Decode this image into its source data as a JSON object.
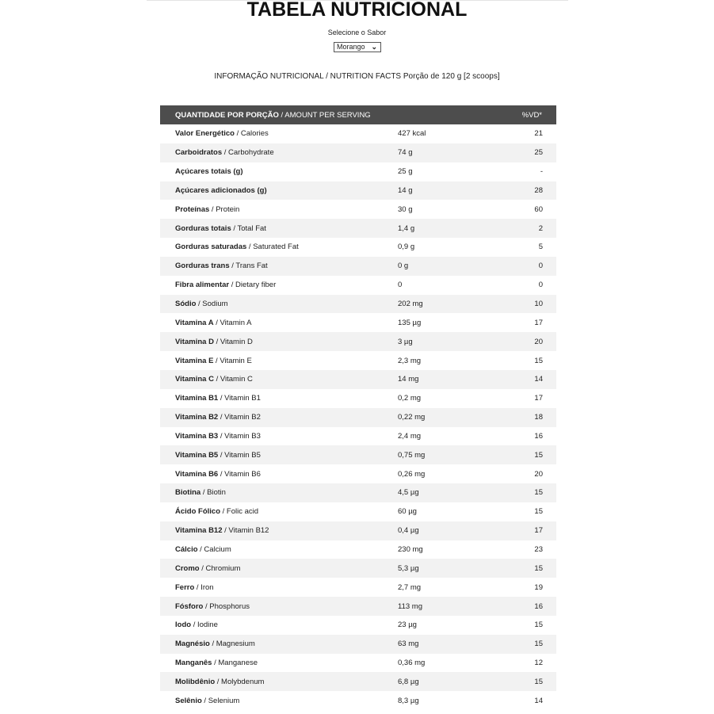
{
  "title": "TABELA NUTRICIONAL",
  "flavor": {
    "label": "Selecione o Sabor",
    "selected": "Morango",
    "icon": "chevron-down-icon"
  },
  "info": "INFORMAÇÃO NUTRICIONAL / NUTRITION FACTS Porção de 120 g [2 scoops]",
  "header": {
    "bold": "QUANTIDADE POR PORÇÃO",
    "rest": " / AMOUNT PER SERVING",
    "vd": "%VD*"
  },
  "colors": {
    "header_bg": "#4d4d4d",
    "alt_row": "#f2f2f2"
  },
  "rows": [
    {
      "pt": "Valor Energético",
      "en": " / Calories",
      "amount": "427 kcal",
      "vd": "21"
    },
    {
      "pt": "Carboidratos",
      "en": " / Carbohydrate",
      "amount": "74 g",
      "vd": "25"
    },
    {
      "pt": "Açúcares totais (g)",
      "en": "",
      "amount": "25 g",
      "vd": "-"
    },
    {
      "pt": "Açúcares adicionados (g)",
      "en": "",
      "amount": "14 g",
      "vd": "28"
    },
    {
      "pt": "Proteínas",
      "en": " / Protein",
      "amount": "30 g",
      "vd": "60"
    },
    {
      "pt": "Gorduras totais",
      "en": " / Total Fat",
      "amount": "1,4 g",
      "vd": "2"
    },
    {
      "pt": "Gorduras saturadas",
      "en": " / Saturated Fat",
      "amount": "0,9 g",
      "vd": "5"
    },
    {
      "pt": "Gorduras trans",
      "en": " / Trans Fat",
      "amount": "0 g",
      "vd": "0"
    },
    {
      "pt": "Fibra alimentar",
      "en": " / Dietary fiber",
      "amount": "0",
      "vd": "0"
    },
    {
      "pt": "Sódio",
      "en": " / Sodium",
      "amount": "202 mg",
      "vd": "10"
    },
    {
      "pt": "Vitamina A",
      "en": " / Vitamin A",
      "amount": "135 µg",
      "vd": "17"
    },
    {
      "pt": "Vitamina D",
      "en": " / Vitamin D",
      "amount": "3 µg",
      "vd": "20"
    },
    {
      "pt": "Vitamina E",
      "en": " / Vitamin E",
      "amount": "2,3 mg",
      "vd": "15"
    },
    {
      "pt": "Vitamina C",
      "en": " / Vitamin C",
      "amount": "14 mg",
      "vd": "14"
    },
    {
      "pt": "Vitamina B1",
      "en": " / Vitamin B1",
      "amount": "0,2 mg",
      "vd": "17"
    },
    {
      "pt": "Vitamina B2",
      "en": " / Vitamin B2",
      "amount": "0,22 mg",
      "vd": "18"
    },
    {
      "pt": "Vitamina B3",
      "en": " / Vitamin B3",
      "amount": "2,4 mg",
      "vd": "16"
    },
    {
      "pt": "Vitamina B5",
      "en": " / Vitamin B5",
      "amount": "0,75 mg",
      "vd": "15"
    },
    {
      "pt": "Vitamina B6",
      "en": " / Vitamin B6",
      "amount": "0,26 mg",
      "vd": "20"
    },
    {
      "pt": "Biotina",
      "en": " / Biotin",
      "amount": "4,5 µg",
      "vd": "15"
    },
    {
      "pt": "Ácido Fólico",
      "en": " / Folic acid",
      "amount": "60 µg",
      "vd": "15"
    },
    {
      "pt": "Vitamina B12",
      "en": " / Vitamin B12",
      "amount": "0,4 µg",
      "vd": "17"
    },
    {
      "pt": "Cálcio",
      "en": " / Calcium",
      "amount": "230 mg",
      "vd": "23"
    },
    {
      "pt": "Cromo",
      "en": " / Chromium",
      "amount": "5,3 µg",
      "vd": "15"
    },
    {
      "pt": "Ferro",
      "en": " / Iron",
      "amount": "2,7 mg",
      "vd": "19"
    },
    {
      "pt": "Fósforo",
      "en": " / Phosphorus",
      "amount": "113 mg",
      "vd": "16"
    },
    {
      "pt": "Iodo",
      "en": " / Iodine",
      "amount": "23 µg",
      "vd": "15"
    },
    {
      "pt": "Magnésio",
      "en": " / Magnesium",
      "amount": "63 mg",
      "vd": "15"
    },
    {
      "pt": "Manganês",
      "en": " / Manganese",
      "amount": "0,36 mg",
      "vd": "12"
    },
    {
      "pt": "Molibdênio",
      "en": " / Molybdenum",
      "amount": "6,8 µg",
      "vd": "15"
    },
    {
      "pt": "Selênio",
      "en": " / Selenium",
      "amount": "8,3 µg",
      "vd": "14"
    }
  ]
}
